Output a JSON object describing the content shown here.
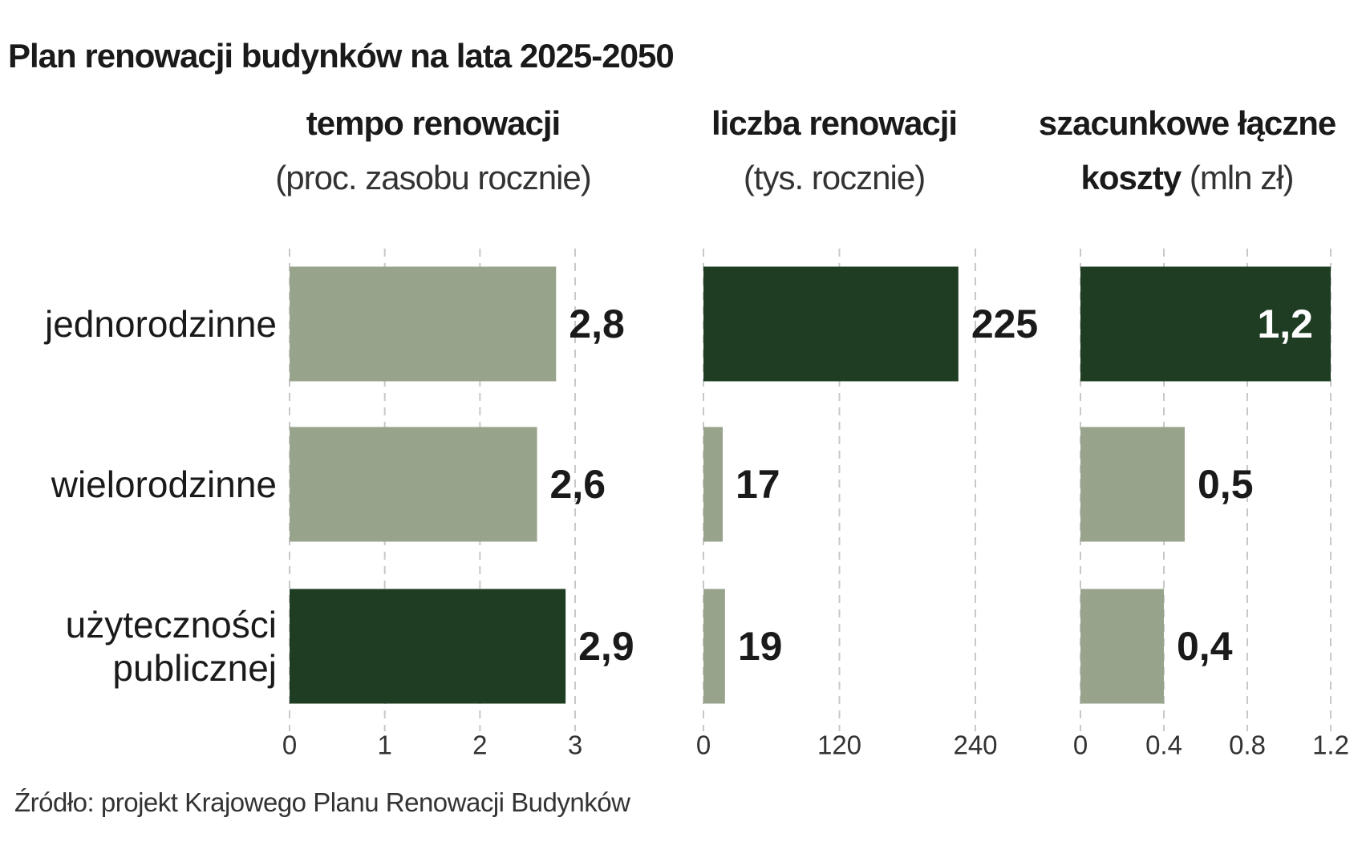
{
  "title": "Plan renowacji budynków na lata 2025-2050",
  "source": "Źródło: projekt Krajowego Planu Renowacji Budynków",
  "categories": [
    "jednorodzinne",
    "wielorodzinne",
    "użyteczności publicznej"
  ],
  "chart_data": [
    {
      "type": "barh",
      "title": "tempo renowacji",
      "subtitle": "(proc. zasobu rocznie)",
      "values": [
        2.8,
        2.6,
        2.9
      ],
      "value_labels": [
        "2,8",
        "2,6",
        "2,9"
      ],
      "colors": [
        "#98a38c",
        "#98a38c",
        "#1f3d23"
      ],
      "xlim": [
        0,
        3
      ],
      "xticks": [
        0,
        1,
        2,
        3
      ],
      "grid": true
    },
    {
      "type": "barh",
      "title": "liczba renowacji",
      "subtitle": "(tys. rocznie)",
      "values": [
        225,
        17,
        19
      ],
      "value_labels": [
        "225",
        "17",
        "19"
      ],
      "colors": [
        "#1f3d23",
        "#98a38c",
        "#98a38c"
      ],
      "xlim": [
        0,
        240
      ],
      "xticks": [
        0,
        120,
        240
      ],
      "grid": true
    },
    {
      "type": "barh",
      "title": "szacunkowe łączne koszty",
      "subtitle": "(mln zł)",
      "values": [
        1.2,
        0.5,
        0.4
      ],
      "value_labels": [
        "1,2",
        "0,5",
        "0,4"
      ],
      "colors": [
        "#1f3d23",
        "#98a38c",
        "#98a38c"
      ],
      "xlim": [
        0,
        1.2
      ],
      "xticks": [
        0,
        0.4,
        0.8,
        1.2
      ],
      "grid": true
    }
  ]
}
